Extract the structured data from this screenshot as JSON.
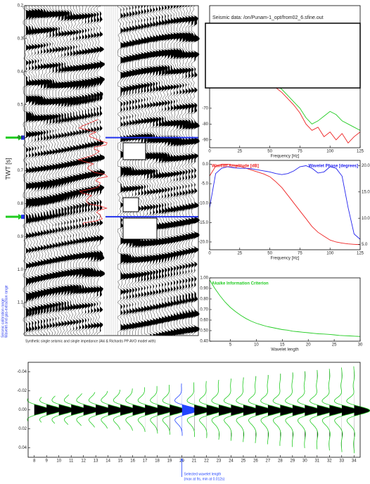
{
  "chart_data": [
    {
      "type": "seismic",
      "ylabel": "TWT [s]",
      "ylim": [
        0.2,
        1.2
      ],
      "yticks": [
        0.2,
        0.3,
        0.4,
        0.5,
        0.6,
        0.7,
        0.8,
        0.9,
        {
          "value": 1,
          "label": "1.0"
        },
        1.1
      ],
      "horizons": [
        0.6,
        0.84
      ],
      "horizon_color": "#22cc22",
      "caption": "Synthetic single seismic and single impedance (Aki & Richards PP AVO model with)",
      "side_labels": [
        "Seismic calibration range",
        "Wavelet and gas-extraction range"
      ]
    },
    {
      "type": "line",
      "title": "Seismic data: /on/Punam-1_opt/from02_6.sfine.out",
      "xlabel": "Frequency [Hz]",
      "x": [
        0,
        5,
        10,
        15,
        20,
        25,
        30,
        35,
        40,
        45,
        50,
        55,
        60,
        65,
        70,
        75,
        80,
        85,
        90,
        95,
        100,
        105,
        110,
        115,
        120,
        125
      ],
      "xlim": [
        0,
        125
      ],
      "xticks": [
        0,
        25,
        50,
        75,
        100,
        125
      ],
      "ylim": [
        -95,
        -5
      ],
      "yticks": [
        -70,
        -80,
        -90
      ],
      "series": [
        {
          "color": "#22cc22",
          "values": [
            -40,
            -35,
            -33,
            -34,
            -36,
            -38,
            -40,
            -42,
            -45,
            -48,
            -52,
            -55,
            -58,
            -62,
            -66,
            -70,
            -76,
            -80,
            -78,
            -75,
            -72,
            -74,
            -78,
            -80,
            -82,
            -84
          ]
        },
        {
          "color": "#ee2222",
          "values": [
            -42,
            -36,
            -34,
            -35,
            -37,
            -39,
            -41,
            -44,
            -47,
            -50,
            -54,
            -57,
            -60,
            -64,
            -68,
            -73,
            -80,
            -84,
            -82,
            -88,
            -85,
            -90,
            -86,
            -92,
            -88,
            -85
          ]
        }
      ]
    },
    {
      "type": "line",
      "xlabel": "Frequency [Hz]",
      "x": [
        0,
        5,
        10,
        15,
        20,
        25,
        30,
        35,
        40,
        45,
        50,
        55,
        60,
        65,
        70,
        75,
        80,
        85,
        90,
        95,
        100,
        105,
        110,
        115,
        120,
        125
      ],
      "xlim": [
        0,
        125
      ],
      "xticks": [
        0,
        25,
        50,
        75,
        100,
        125
      ],
      "ylim": [
        -22,
        1
      ],
      "yticks": [
        {
          "value": 0,
          "label": "0.0"
        },
        {
          "value": -5,
          "label": "-5.0"
        },
        {
          "value": -10,
          "label": "-10.0"
        },
        {
          "value": -15,
          "label": "-15.0"
        },
        {
          "value": -20,
          "label": "-20.0"
        }
      ],
      "y2lim": [
        4,
        21
      ],
      "y2ticks": [
        {
          "value": 20,
          "label": "20.0"
        },
        {
          "value": 15,
          "label": "15.0"
        },
        {
          "value": 10,
          "label": "10.0"
        },
        {
          "value": 5,
          "label": "5.0"
        }
      ],
      "series": [
        {
          "name": "Wavelet Amplitude [dB]",
          "color": "#ee2222",
          "values": [
            -3,
            -0.5,
            0,
            0,
            -0.2,
            -0.5,
            -1,
            -1.5,
            -2,
            -2.5,
            -3.2,
            -4.5,
            -6,
            -8,
            -10,
            -12,
            -14,
            -16,
            -17.5,
            -18.5,
            -19.5,
            -20,
            -20.3,
            -20.5,
            -20.6,
            -20.7
          ]
        },
        {
          "name": "Wavelet Phase [degrees]",
          "color": "#2222ee",
          "axis": "y2",
          "values": [
            12,
            18.5,
            19.5,
            19.8,
            19.6,
            19.5,
            19.5,
            19.4,
            19.2,
            19,
            18.8,
            18.5,
            18.3,
            18.5,
            19,
            19.8,
            20,
            19.5,
            18.6,
            18.8,
            19.8,
            19.5,
            18,
            12,
            7,
            6
          ]
        }
      ]
    },
    {
      "type": "line",
      "xlabel": "Wavelet length",
      "x": [
        1,
        2,
        3,
        4,
        5,
        6,
        7,
        8,
        9,
        10,
        11,
        12,
        13,
        14,
        15,
        16,
        17,
        18,
        19,
        20,
        21,
        22,
        23,
        24,
        25,
        26,
        27,
        28,
        29,
        30
      ],
      "xlim": [
        1,
        30
      ],
      "xticks": [
        5,
        10,
        15,
        20,
        25,
        30
      ],
      "ylim": [
        0.4,
        1.0
      ],
      "yticks": [
        {
          "value": 1,
          "label": "1.00"
        },
        {
          "value": 0.9,
          "label": "0.90"
        },
        {
          "value": 0.8,
          "label": "0.80"
        },
        {
          "value": 0.7,
          "label": "0.70"
        },
        {
          "value": 0.6,
          "label": "0.60"
        },
        {
          "value": 0.5,
          "label": "0.50"
        },
        {
          "value": 0.4,
          "label": "0.40"
        }
      ],
      "series": [
        {
          "name": "Akaike Information Criterion",
          "color": "#22cc22",
          "values": [
            0.98,
            0.9,
            0.83,
            0.77,
            0.72,
            0.68,
            0.645,
            0.615,
            0.59,
            0.57,
            0.555,
            0.54,
            0.53,
            0.52,
            0.51,
            0.505,
            0.495,
            0.49,
            0.485,
            0.48,
            0.475,
            0.47,
            0.468,
            0.465,
            0.46,
            0.455,
            0.452,
            0.45,
            0.447,
            0.445
          ]
        }
      ]
    },
    {
      "type": "wavelet",
      "x": [
        8,
        9,
        10,
        11,
        12,
        13,
        14,
        15,
        16,
        17,
        18,
        19,
        20,
        21,
        22,
        23,
        24,
        25,
        26,
        27,
        28,
        29,
        30,
        31,
        32,
        33,
        34
      ],
      "xlim": [
        7.5,
        34.5
      ],
      "xticks": [
        8,
        9,
        10,
        11,
        12,
        13,
        14,
        15,
        16,
        17,
        18,
        19,
        20,
        21,
        22,
        23,
        24,
        25,
        26,
        27,
        28,
        29,
        30,
        31,
        32,
        33,
        34
      ],
      "ylim": [
        -0.05,
        0.05
      ],
      "invert_y": true,
      "yticks": [
        -0.04,
        -0.02,
        {
          "value": 0,
          "label": "0.00"
        },
        0.02,
        0.04
      ],
      "color": "#22cc22",
      "selected": 20,
      "selected_color": "#2244ff",
      "annotation": [
        "Selected wavelet length",
        "(max at 9s, min at 0.012s)"
      ]
    }
  ]
}
